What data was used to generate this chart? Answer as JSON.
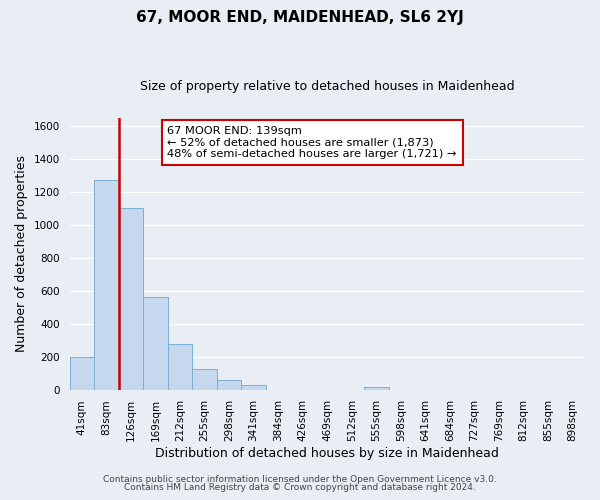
{
  "title": "67, MOOR END, MAIDENHEAD, SL6 2YJ",
  "subtitle": "Size of property relative to detached houses in Maidenhead",
  "xlabel": "Distribution of detached houses by size in Maidenhead",
  "ylabel": "Number of detached properties",
  "bar_labels": [
    "41sqm",
    "83sqm",
    "126sqm",
    "169sqm",
    "212sqm",
    "255sqm",
    "298sqm",
    "341sqm",
    "384sqm",
    "426sqm",
    "469sqm",
    "512sqm",
    "555sqm",
    "598sqm",
    "641sqm",
    "684sqm",
    "727sqm",
    "769sqm",
    "812sqm",
    "855sqm",
    "898sqm"
  ],
  "bar_values": [
    200,
    1270,
    1100,
    560,
    275,
    125,
    60,
    30,
    0,
    0,
    0,
    0,
    15,
    0,
    0,
    0,
    0,
    0,
    0,
    0,
    0
  ],
  "bar_color": "#c5d8ed",
  "bar_edge_color": "#7aafd4",
  "vline_color": "#cc0000",
  "ylim": [
    0,
    1650
  ],
  "yticks": [
    0,
    200,
    400,
    600,
    800,
    1000,
    1200,
    1400,
    1600
  ],
  "annotation_line1": "67 MOOR END: 139sqm",
  "annotation_line2": "← 52% of detached houses are smaller (1,873)",
  "annotation_line3": "48% of semi-detached houses are larger (1,721) →",
  "annotation_box_color": "#ffffff",
  "annotation_box_edge": "#cc0000",
  "footer_line1": "Contains HM Land Registry data © Crown copyright and database right 2024.",
  "footer_line2": "Contains public sector information licensed under the Open Government Licence v3.0.",
  "background_color": "#e8eef4",
  "grid_color": "#ffffff",
  "title_fontsize": 11,
  "subtitle_fontsize": 9,
  "ylabel_fontsize": 9,
  "xlabel_fontsize": 9,
  "tick_fontsize": 7.5,
  "footer_fontsize": 6.5
}
